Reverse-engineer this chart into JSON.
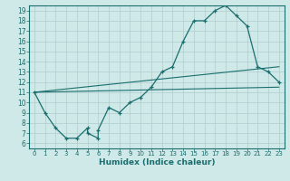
{
  "title": "",
  "xlabel": "Humidex (Indice chaleur)",
  "background_color": "#cfe8e8",
  "grid_color": "#b0cccc",
  "line_color": "#1a6e6e",
  "xlim": [
    -0.5,
    23.5
  ],
  "ylim": [
    5.5,
    19.5
  ],
  "xticks": [
    0,
    1,
    2,
    3,
    4,
    5,
    6,
    7,
    8,
    9,
    10,
    11,
    12,
    13,
    14,
    15,
    16,
    17,
    18,
    19,
    20,
    21,
    22,
    23
  ],
  "yticks": [
    6,
    7,
    8,
    9,
    10,
    11,
    12,
    13,
    14,
    15,
    16,
    17,
    18,
    19
  ],
  "line1_x": [
    0,
    1,
    2,
    3,
    4,
    5,
    5,
    6,
    6,
    7,
    8,
    9,
    10,
    11,
    12,
    13,
    14,
    15,
    16,
    17,
    18,
    19,
    20,
    21,
    22,
    23
  ],
  "line1_y": [
    11,
    9,
    7.5,
    6.5,
    6.5,
    7.5,
    7.0,
    6.5,
    7.3,
    9.5,
    9.0,
    10.0,
    10.5,
    11.5,
    13.0,
    13.5,
    16.0,
    18.0,
    18.0,
    19.0,
    19.5,
    18.5,
    17.5,
    13.5,
    13.0,
    12.0
  ],
  "line2_x": [
    0,
    23
  ],
  "line2_y": [
    11,
    11.5
  ],
  "line3_x": [
    0,
    23
  ],
  "line3_y": [
    11,
    13.5
  ],
  "font_color": "#1a6e6e"
}
